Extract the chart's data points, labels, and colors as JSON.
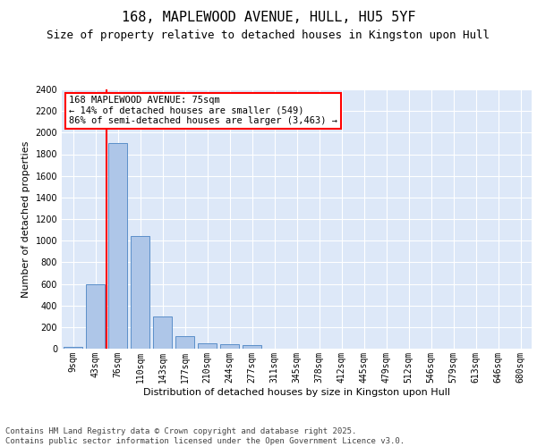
{
  "title": "168, MAPLEWOOD AVENUE, HULL, HU5 5YF",
  "subtitle": "Size of property relative to detached houses in Kingston upon Hull",
  "xlabel": "Distribution of detached houses by size in Kingston upon Hull",
  "ylabel": "Number of detached properties",
  "categories": [
    "9sqm",
    "43sqm",
    "76sqm",
    "110sqm",
    "143sqm",
    "177sqm",
    "210sqm",
    "244sqm",
    "277sqm",
    "311sqm",
    "345sqm",
    "378sqm",
    "412sqm",
    "445sqm",
    "479sqm",
    "512sqm",
    "546sqm",
    "579sqm",
    "613sqm",
    "646sqm",
    "680sqm"
  ],
  "values": [
    20,
    600,
    1900,
    1040,
    295,
    120,
    50,
    40,
    30,
    0,
    0,
    0,
    0,
    0,
    0,
    0,
    0,
    0,
    0,
    0,
    0
  ],
  "bar_color": "#aec6e8",
  "bar_edge_color": "#5b8fc9",
  "background_color": "#dde8f8",
  "grid_color": "#ffffff",
  "property_label": "168 MAPLEWOOD AVENUE: 75sqm",
  "pct_smaller": 14,
  "count_smaller": 549,
  "pct_larger": 86,
  "count_larger": 3463,
  "ylim": [
    0,
    2400
  ],
  "yticks": [
    0,
    200,
    400,
    600,
    800,
    1000,
    1200,
    1400,
    1600,
    1800,
    2000,
    2200,
    2400
  ],
  "footer": "Contains HM Land Registry data © Crown copyright and database right 2025.\nContains public sector information licensed under the Open Government Licence v3.0.",
  "title_fontsize": 11,
  "subtitle_fontsize": 9,
  "axis_label_fontsize": 8,
  "tick_fontsize": 7,
  "annotation_fontsize": 7.5,
  "footer_fontsize": 6.5
}
